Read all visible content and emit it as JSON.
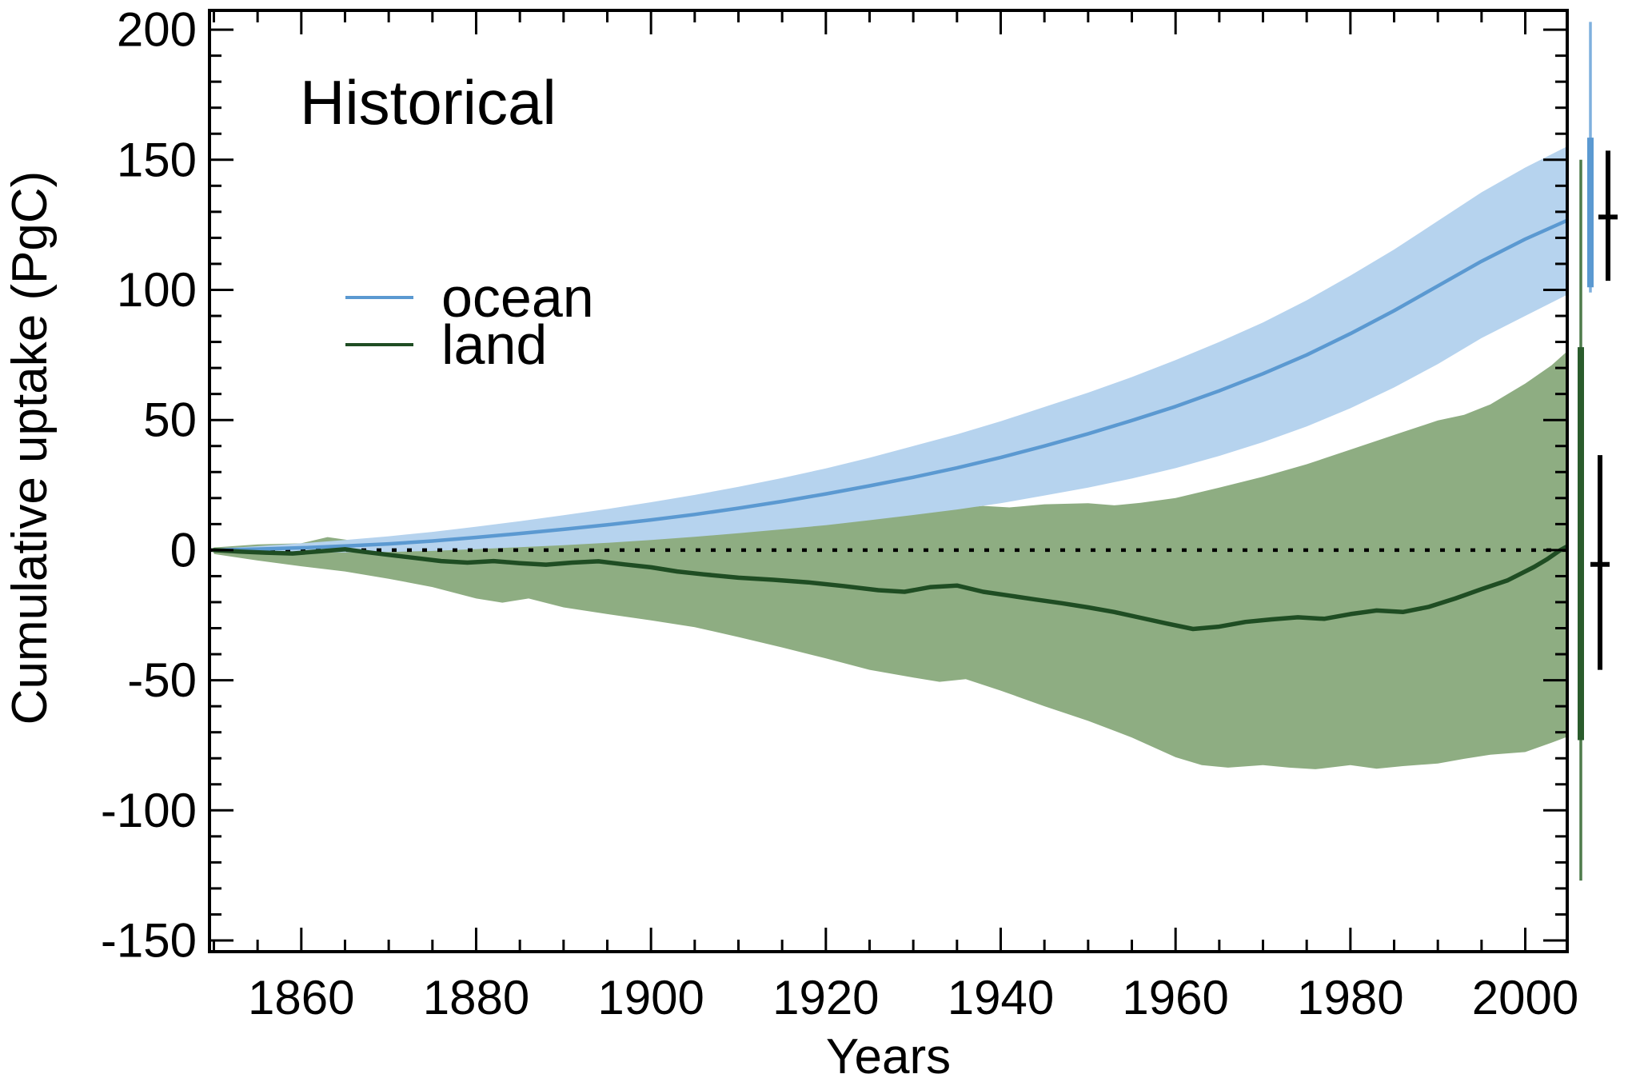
{
  "title": "Historical",
  "legend": {
    "items": [
      {
        "label": "ocean",
        "color": "#5b99d1"
      },
      {
        "label": "land",
        "color": "#1f4d23"
      }
    ]
  },
  "axes": {
    "x_label": "Years",
    "y_label": "Cumulative uptake (PgC)"
  },
  "chart_data": {
    "type": "line",
    "title": "Historical",
    "xlabel": "Years",
    "ylabel": "Cumulative uptake (PgC)",
    "x_range": [
      1849.5,
      2004.8
    ],
    "y_range": [
      -154.3,
      207.4
    ],
    "x_ticks": [
      1860,
      1880,
      1900,
      1920,
      1940,
      1960,
      1980,
      2000
    ],
    "x_minor_step": 5,
    "y_ticks": [
      -150,
      -100,
      -50,
      0,
      50,
      100,
      150,
      200
    ],
    "y_minor_step": 10,
    "grid": false,
    "zero_line": {
      "show": true,
      "value": 0,
      "style": "dotted",
      "color": "#000000"
    },
    "legend_position": "upper-left-inside",
    "colors": {
      "ocean_line": "#5b99d1",
      "ocean_band": "#b6d3ee",
      "land_line": "#1f4d23",
      "land_band": "#8ead82",
      "ocean_range_line": "#7fb0de",
      "land_range_line": "#4e7b4b",
      "land_sigma_bar": "#2a5c2c",
      "error_bar": "#000000"
    },
    "series": [
      {
        "name": "ocean",
        "color": "#5b99d1",
        "points": [
          [
            1850,
            0
          ],
          [
            1855,
            0.4
          ],
          [
            1860,
            0.9
          ],
          [
            1865,
            1.6
          ],
          [
            1870,
            2.4
          ],
          [
            1875,
            3.5
          ],
          [
            1880,
            4.9
          ],
          [
            1885,
            6.4
          ],
          [
            1890,
            8.0
          ],
          [
            1895,
            9.7
          ],
          [
            1900,
            11.6
          ],
          [
            1905,
            13.7
          ],
          [
            1910,
            16.1
          ],
          [
            1915,
            18.7
          ],
          [
            1920,
            21.6
          ],
          [
            1925,
            24.7
          ],
          [
            1930,
            28.0
          ],
          [
            1935,
            31.6
          ],
          [
            1940,
            35.6
          ],
          [
            1945,
            40.0
          ],
          [
            1950,
            44.7
          ],
          [
            1955,
            49.8
          ],
          [
            1960,
            55.2
          ],
          [
            1965,
            61.2
          ],
          [
            1970,
            67.8
          ],
          [
            1975,
            75.0
          ],
          [
            1980,
            83.2
          ],
          [
            1985,
            92.0
          ],
          [
            1990,
            101.5
          ],
          [
            1995,
            111.0
          ],
          [
            2000,
            119.5
          ],
          [
            2005,
            127.0
          ]
        ]
      },
      {
        "name": "land",
        "color": "#1f4d23",
        "points": [
          [
            1850,
            0
          ],
          [
            1853,
            -0.6
          ],
          [
            1856,
            -1.0
          ],
          [
            1859,
            -1.3
          ],
          [
            1862,
            -0.5
          ],
          [
            1865,
            0.3
          ],
          [
            1867,
            -0.6
          ],
          [
            1870,
            -1.8
          ],
          [
            1873,
            -3.0
          ],
          [
            1876,
            -4.2
          ],
          [
            1879,
            -4.8
          ],
          [
            1882,
            -4.2
          ],
          [
            1885,
            -5.0
          ],
          [
            1888,
            -5.6
          ],
          [
            1891,
            -4.8
          ],
          [
            1894,
            -4.3
          ],
          [
            1897,
            -5.5
          ],
          [
            1900,
            -6.6
          ],
          [
            1903,
            -8.2
          ],
          [
            1906,
            -9.3
          ],
          [
            1910,
            -10.6
          ],
          [
            1914,
            -11.4
          ],
          [
            1918,
            -12.4
          ],
          [
            1922,
            -13.8
          ],
          [
            1926,
            -15.4
          ],
          [
            1929,
            -16.0
          ],
          [
            1932,
            -14.2
          ],
          [
            1935,
            -13.6
          ],
          [
            1938,
            -16.0
          ],
          [
            1941,
            -17.5
          ],
          [
            1944,
            -19.0
          ],
          [
            1947,
            -20.4
          ],
          [
            1950,
            -22.0
          ],
          [
            1953,
            -23.8
          ],
          [
            1956,
            -26.0
          ],
          [
            1959,
            -28.2
          ],
          [
            1962,
            -30.3
          ],
          [
            1965,
            -29.4
          ],
          [
            1968,
            -27.6
          ],
          [
            1971,
            -26.6
          ],
          [
            1974,
            -25.8
          ],
          [
            1977,
            -26.4
          ],
          [
            1980,
            -24.6
          ],
          [
            1983,
            -23.2
          ],
          [
            1986,
            -23.8
          ],
          [
            1989,
            -21.8
          ],
          [
            1992,
            -18.6
          ],
          [
            1995,
            -15.0
          ],
          [
            1998,
            -11.6
          ],
          [
            2001,
            -6.5
          ],
          [
            2002.5,
            -3.5
          ],
          [
            2004,
            0.0
          ],
          [
            2005,
            1.8
          ]
        ]
      }
    ],
    "bands": [
      {
        "name": "land-spread",
        "color": "#8ead82",
        "upper": [
          [
            1850,
            1.0
          ],
          [
            1855,
            2.2
          ],
          [
            1860,
            2.6
          ],
          [
            1863,
            5.0
          ],
          [
            1866,
            3.6
          ],
          [
            1870,
            3.0
          ],
          [
            1875,
            3.6
          ],
          [
            1880,
            5.0
          ],
          [
            1885,
            5.6
          ],
          [
            1890,
            5.2
          ],
          [
            1895,
            6.0
          ],
          [
            1900,
            7.0
          ],
          [
            1905,
            7.8
          ],
          [
            1910,
            8.6
          ],
          [
            1915,
            9.2
          ],
          [
            1920,
            10.6
          ],
          [
            1925,
            12.2
          ],
          [
            1930,
            14.6
          ],
          [
            1935,
            16.2
          ],
          [
            1938,
            17.0
          ],
          [
            1941,
            16.4
          ],
          [
            1945,
            17.6
          ],
          [
            1950,
            18.0
          ],
          [
            1953,
            17.2
          ],
          [
            1956,
            18.2
          ],
          [
            1960,
            20.0
          ],
          [
            1965,
            24.0
          ],
          [
            1970,
            28.2
          ],
          [
            1975,
            33.0
          ],
          [
            1980,
            38.6
          ],
          [
            1983,
            42.0
          ],
          [
            1986,
            45.4
          ],
          [
            1990,
            49.8
          ],
          [
            1993,
            52.0
          ],
          [
            1996,
            56.0
          ],
          [
            2000,
            64.0
          ],
          [
            2003,
            71.0
          ],
          [
            2005,
            77.0
          ]
        ],
        "lower": [
          [
            1850,
            -1.5
          ],
          [
            1855,
            -4.0
          ],
          [
            1860,
            -6.2
          ],
          [
            1865,
            -8.2
          ],
          [
            1870,
            -11.0
          ],
          [
            1875,
            -14.2
          ],
          [
            1880,
            -18.6
          ],
          [
            1883,
            -20.2
          ],
          [
            1886,
            -18.6
          ],
          [
            1890,
            -22.0
          ],
          [
            1895,
            -24.6
          ],
          [
            1900,
            -27.0
          ],
          [
            1905,
            -29.6
          ],
          [
            1910,
            -33.4
          ],
          [
            1915,
            -37.4
          ],
          [
            1920,
            -41.6
          ],
          [
            1925,
            -46.0
          ],
          [
            1930,
            -49.0
          ],
          [
            1933,
            -50.6
          ],
          [
            1936,
            -49.6
          ],
          [
            1940,
            -54.0
          ],
          [
            1945,
            -60.0
          ],
          [
            1950,
            -65.6
          ],
          [
            1955,
            -72.0
          ],
          [
            1960,
            -79.6
          ],
          [
            1963,
            -82.6
          ],
          [
            1966,
            -83.6
          ],
          [
            1970,
            -82.6
          ],
          [
            1973,
            -83.6
          ],
          [
            1976,
            -84.2
          ],
          [
            1980,
            -82.6
          ],
          [
            1983,
            -84.0
          ],
          [
            1986,
            -83.0
          ],
          [
            1990,
            -82.0
          ],
          [
            1993,
            -80.2
          ],
          [
            1996,
            -78.6
          ],
          [
            2000,
            -77.6
          ],
          [
            2003,
            -74.0
          ],
          [
            2005,
            -71.5
          ]
        ]
      },
      {
        "name": "ocean-spread",
        "color": "#b6d3ee",
        "upper": [
          [
            1850,
            0.5
          ],
          [
            1855,
            1.5
          ],
          [
            1860,
            2.6
          ],
          [
            1865,
            3.9
          ],
          [
            1870,
            5.3
          ],
          [
            1875,
            7.0
          ],
          [
            1880,
            9.0
          ],
          [
            1885,
            11.1
          ],
          [
            1890,
            13.4
          ],
          [
            1895,
            15.8
          ],
          [
            1900,
            18.4
          ],
          [
            1905,
            21.2
          ],
          [
            1910,
            24.3
          ],
          [
            1915,
            27.7
          ],
          [
            1920,
            31.4
          ],
          [
            1925,
            35.5
          ],
          [
            1930,
            40.0
          ],
          [
            1935,
            44.5
          ],
          [
            1940,
            49.5
          ],
          [
            1945,
            55.0
          ],
          [
            1950,
            60.5
          ],
          [
            1955,
            66.5
          ],
          [
            1960,
            73.0
          ],
          [
            1965,
            80.0
          ],
          [
            1970,
            87.5
          ],
          [
            1975,
            96.0
          ],
          [
            1980,
            105.5
          ],
          [
            1985,
            115.5
          ],
          [
            1990,
            126.5
          ],
          [
            1995,
            137.5
          ],
          [
            2000,
            147.0
          ],
          [
            2005,
            155.5
          ]
        ],
        "lower": [
          [
            1850,
            -0.5
          ],
          [
            1855,
            -0.8
          ],
          [
            1860,
            -1.0
          ],
          [
            1865,
            -0.9
          ],
          [
            1870,
            -0.7
          ],
          [
            1875,
            -0.3
          ],
          [
            1880,
            0.4
          ],
          [
            1885,
            1.1
          ],
          [
            1890,
            1.9
          ],
          [
            1895,
            2.8
          ],
          [
            1900,
            3.9
          ],
          [
            1905,
            5.1
          ],
          [
            1910,
            6.5
          ],
          [
            1915,
            8.0
          ],
          [
            1920,
            9.6
          ],
          [
            1925,
            11.5
          ],
          [
            1930,
            13.5
          ],
          [
            1935,
            15.6
          ],
          [
            1940,
            18.0
          ],
          [
            1945,
            21.0
          ],
          [
            1950,
            24.0
          ],
          [
            1955,
            27.5
          ],
          [
            1960,
            31.5
          ],
          [
            1965,
            36.2
          ],
          [
            1970,
            41.5
          ],
          [
            1975,
            47.5
          ],
          [
            1980,
            54.5
          ],
          [
            1985,
            62.5
          ],
          [
            1990,
            71.5
          ],
          [
            1995,
            81.5
          ],
          [
            2000,
            90.0
          ],
          [
            2005,
            98.5
          ]
        ]
      }
    ],
    "side_annotations": [
      {
        "name": "land-model-range",
        "kind": "line",
        "x": 1977,
        "from": -127.0,
        "to": 150.0,
        "color": "#4e7b4b",
        "width": 3.5
      },
      {
        "name": "land-model-sigma",
        "kind": "line",
        "x": 1977,
        "from": -73.0,
        "to": 78.0,
        "color": "#2a5c2c",
        "width": 8
      },
      {
        "name": "ocean-model-range",
        "kind": "line",
        "x": 1989,
        "from": 99.0,
        "to": 203.0,
        "color": "#7fb0de",
        "width": 3.5
      },
      {
        "name": "ocean-model-sigma",
        "kind": "line",
        "x": 1989,
        "from": 101.0,
        "to": 158.5,
        "color": "#5b99d1",
        "width": 8
      },
      {
        "name": "ocean-obs-errorbar",
        "kind": "errorbar",
        "x": 2011,
        "from": 103.5,
        "to": 153.5,
        "center": 128.0,
        "color": "#000000",
        "width": 6,
        "cap_halfwidth": 12
      },
      {
        "name": "land-obs-errorbar",
        "kind": "errorbar",
        "x": 2001,
        "from": -46.0,
        "to": 36.5,
        "center": -5.5,
        "color": "#000000",
        "width": 6,
        "cap_halfwidth": 12
      }
    ]
  }
}
